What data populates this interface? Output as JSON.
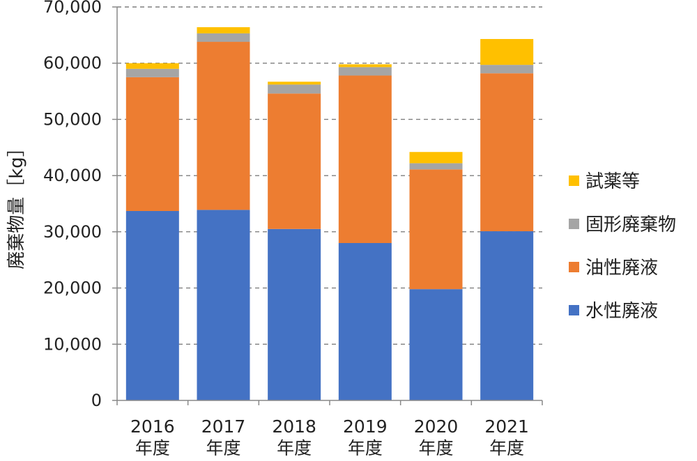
{
  "chart_data": {
    "type": "bar",
    "stacked": true,
    "ylabel": "廃棄物量［kg］",
    "ylim": [
      0,
      70000
    ],
    "yticks": [
      0,
      10000,
      20000,
      30000,
      40000,
      50000,
      60000,
      70000
    ],
    "ytick_labels": [
      "0",
      "10,000",
      "20,000",
      "30,000",
      "40,000",
      "50,000",
      "60,000",
      "70,000"
    ],
    "grid": true,
    "legend_position": "right",
    "categories": [
      {
        "year": "2016",
        "suffix": "年度"
      },
      {
        "year": "2017",
        "suffix": "年度"
      },
      {
        "year": "2018",
        "suffix": "年度"
      },
      {
        "year": "2019",
        "suffix": "年度"
      },
      {
        "year": "2020",
        "suffix": "年度"
      },
      {
        "year": "2021",
        "suffix": "年度"
      }
    ],
    "series": [
      {
        "name": "水性廃液",
        "color": "#4472C4",
        "values": [
          33700,
          33900,
          30500,
          28000,
          19800,
          30100
        ]
      },
      {
        "name": "油性廃液",
        "color": "#ED7D31",
        "values": [
          23800,
          29900,
          24100,
          29800,
          21300,
          28100
        ]
      },
      {
        "name": "固形廃棄物",
        "color": "#A5A5A5",
        "values": [
          1500,
          1500,
          1600,
          1500,
          1100,
          1500
        ]
      },
      {
        "name": "試薬等",
        "color": "#FFC000",
        "values": [
          1000,
          1100,
          500,
          500,
          2000,
          4600
        ]
      }
    ],
    "legend_order": [
      "試薬等",
      "固形廃棄物",
      "油性廃液",
      "水性廃液"
    ]
  }
}
